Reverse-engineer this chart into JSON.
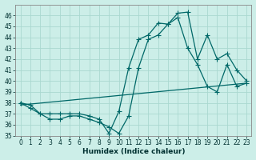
{
  "xlabel": "Humidex (Indice chaleur)",
  "bg_color": "#cceee8",
  "grid_color": "#aad8d0",
  "line_color": "#006868",
  "xlim": [
    -0.5,
    23.5
  ],
  "ylim": [
    35,
    47
  ],
  "yticks": [
    35,
    36,
    37,
    38,
    39,
    40,
    41,
    42,
    43,
    44,
    45,
    46
  ],
  "xticks": [
    0,
    1,
    2,
    3,
    4,
    5,
    6,
    7,
    8,
    9,
    10,
    11,
    12,
    13,
    14,
    15,
    16,
    17,
    18,
    19,
    20,
    21,
    22,
    23
  ],
  "line1_x": [
    0,
    1,
    2,
    3,
    4,
    5,
    6,
    7,
    8,
    9,
    10,
    11,
    12,
    13,
    14,
    15,
    16,
    17,
    18,
    19,
    20,
    21,
    22,
    23
  ],
  "line1_y": [
    38.0,
    37.5,
    37.0,
    37.0,
    37.0,
    37.0,
    37.0,
    36.8,
    36.5,
    35.2,
    37.2,
    41.2,
    43.8,
    44.2,
    45.3,
    45.2,
    45.8,
    43.0,
    41.5,
    39.5,
    39.0,
    41.5,
    39.5,
    39.8
  ],
  "line2_x": [
    0,
    1,
    2,
    3,
    4,
    5,
    6,
    7,
    8,
    9,
    10,
    11,
    12,
    13,
    14,
    15,
    16,
    17,
    18,
    19,
    20,
    21,
    22,
    23
  ],
  "line2_y": [
    38.0,
    37.8,
    37.0,
    36.5,
    36.5,
    36.8,
    36.8,
    36.5,
    36.2,
    35.8,
    35.2,
    36.8,
    41.2,
    43.8,
    44.2,
    45.2,
    46.2,
    46.3,
    42.0,
    44.2,
    42.0,
    42.5,
    41.0,
    40.0
  ],
  "line3_x": [
    0,
    23
  ],
  "line3_y": [
    37.8,
    39.8
  ]
}
